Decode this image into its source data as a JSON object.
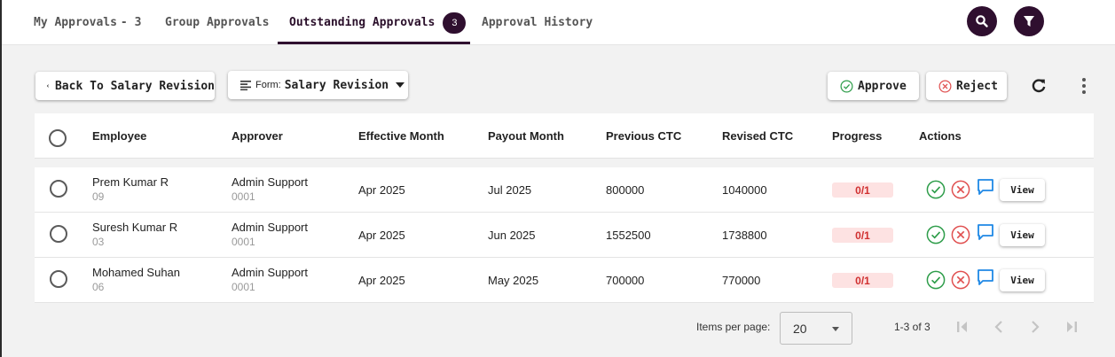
{
  "tabs": {
    "my_approvals": {
      "label": "My Approvals",
      "count": "- 3"
    },
    "group_approvals": {
      "label": "Group Approvals"
    },
    "outstanding_approvals": {
      "label": "Outstanding Approvals",
      "badge": "3"
    },
    "approval_history": {
      "label": "Approval History"
    }
  },
  "header_actions": {
    "search_icon": "search-icon",
    "filter_icon": "filter-icon"
  },
  "toolbar": {
    "back_label": "Back To Salary Revision",
    "form_prefix": "Form:",
    "form_value": "Salary Revision",
    "approve_label": "Approve",
    "reject_label": "Reject",
    "refresh_icon": "refresh-icon",
    "more_icon": "more-vertical-icon"
  },
  "table": {
    "columns": {
      "employee": "Employee",
      "approver": "Approver",
      "effective_month": "Effective Month",
      "payout_month": "Payout Month",
      "previous_ctc": "Previous CTC",
      "revised_ctc": "Revised CTC",
      "progress": "Progress",
      "actions": "Actions"
    },
    "rows": [
      {
        "employee": "Prem Kumar R",
        "employee_code": "09",
        "approver": "Admin Support",
        "approver_code": "0001",
        "effective_month": "Apr 2025",
        "payout_month": "Jul 2025",
        "previous_ctc": "800000",
        "revised_ctc": "1040000",
        "progress": "0/1",
        "view_label": "View"
      },
      {
        "employee": "Suresh Kumar R",
        "employee_code": "03",
        "approver": "Admin Support",
        "approver_code": "0001",
        "effective_month": "Apr 2025",
        "payout_month": "Jun 2025",
        "previous_ctc": "1552500",
        "revised_ctc": "1738800",
        "progress": "0/1",
        "view_label": "View"
      },
      {
        "employee": "Mohamed Suhan",
        "employee_code": "06",
        "approver": "Admin Support",
        "approver_code": "0001",
        "effective_month": "Apr 2025",
        "payout_month": "May 2025",
        "previous_ctc": "700000",
        "revised_ctc": "770000",
        "progress": "0/1",
        "view_label": "View"
      }
    ]
  },
  "paginator": {
    "items_per_page_label": "Items per page:",
    "items_per_page_value": "20",
    "range_label": "1-3 of 3"
  },
  "colors": {
    "brand_dark": "#2f0f2f",
    "approve_green": "#2e9d4a",
    "reject_red": "#e05050",
    "comment_blue": "#1e88e5",
    "progress_bg": "#fde2e2",
    "progress_text": "#d03030"
  }
}
